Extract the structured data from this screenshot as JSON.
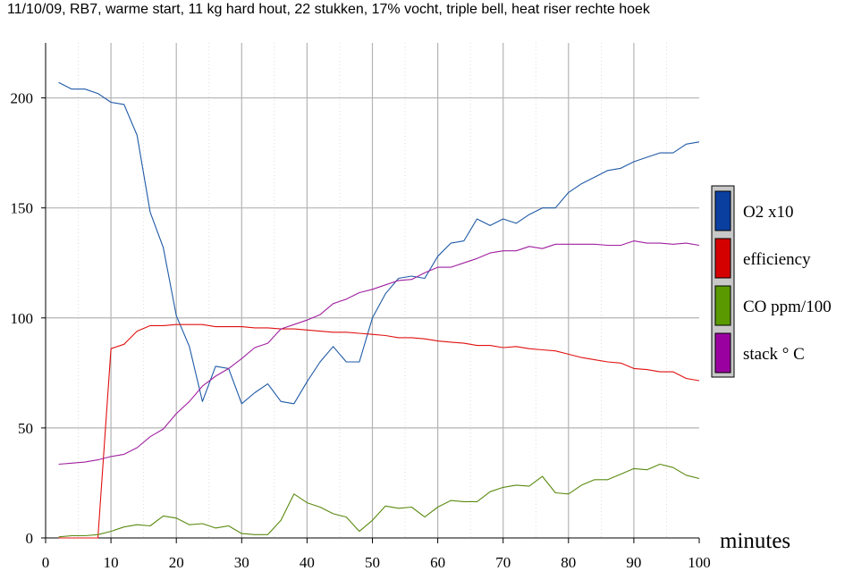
{
  "title": "11/10/09, RB7, warme start, 11 kg hard hout, 22 stukken, 17% vocht, triple bell, heat riser rechte hoek",
  "chart_data": {
    "type": "line",
    "title": "11/10/09, RB7, warme start, 11 kg hard hout, 22 stukken, 17% vocht, triple bell, heat riser rechte hoek",
    "xlabel": "minutes",
    "ylabel": "",
    "xlim": [
      0,
      100
    ],
    "ylim": [
      0,
      225
    ],
    "xticks": [
      0,
      10,
      20,
      30,
      40,
      50,
      60,
      70,
      80,
      90,
      100
    ],
    "yticks": [
      0,
      50,
      100,
      150,
      200
    ],
    "grid": true,
    "legend_position": "right",
    "x": [
      2,
      4,
      6,
      8,
      10,
      12,
      14,
      16,
      18,
      20,
      22,
      24,
      26,
      28,
      30,
      32,
      34,
      36,
      38,
      40,
      42,
      44,
      46,
      48,
      50,
      52,
      54,
      56,
      58,
      60,
      62,
      64,
      66,
      68,
      70,
      72,
      74,
      76,
      78,
      80,
      82,
      84,
      86,
      88,
      90,
      92,
      94,
      96,
      98,
      100
    ],
    "series": [
      {
        "name": "O2 x10",
        "color": "#1f5aa6",
        "legend_color": "#0a3fa0",
        "values": [
          207,
          204,
          204,
          202,
          198,
          197,
          183,
          148,
          132,
          101,
          87,
          62,
          78,
          77,
          61,
          66,
          70,
          62,
          61,
          71,
          80,
          87,
          80,
          80,
          100,
          111,
          118,
          119,
          118,
          128,
          134,
          135,
          145,
          142,
          145,
          143,
          147,
          150,
          150,
          157,
          161,
          164,
          167,
          168,
          171,
          173,
          175,
          175,
          179,
          180
        ]
      },
      {
        "name": "efficiency",
        "color": "#e01010",
        "legend_color": "#d40000",
        "values": [
          0,
          0,
          0,
          0,
          86,
          88,
          94,
          96.5,
          96.5,
          97,
          97,
          97,
          96,
          96,
          96,
          95.5,
          95.5,
          95,
          95,
          94.5,
          94,
          93.5,
          93.5,
          93,
          92.5,
          92,
          91,
          91,
          90.5,
          89.5,
          89,
          88.5,
          87.5,
          87.5,
          86.5,
          87,
          86,
          85.5,
          85,
          83.5,
          82,
          81,
          80,
          79.5,
          77,
          76.5,
          75.5,
          75.5,
          72.5,
          71.5
        ]
      },
      {
        "name": "CO ppm/100",
        "color": "#5a8a10",
        "legend_color": "#5a9a00",
        "values": [
          0.5,
          1,
          1,
          1.5,
          3,
          5,
          6,
          5.5,
          10,
          9,
          6,
          6.5,
          4.5,
          5.5,
          2,
          1.5,
          1.5,
          8,
          20,
          16,
          14,
          11,
          9.5,
          3,
          8,
          14.5,
          13.5,
          14,
          9.5,
          14,
          17,
          16.5,
          16.5,
          21,
          23,
          24,
          23.5,
          28,
          20.5,
          20,
          24,
          26.5,
          26.5,
          29,
          31.5,
          31,
          33.5,
          32,
          28.5,
          27
        ]
      },
      {
        "name": "stack ° C",
        "color": "#a020a0",
        "legend_color": "#9a00a0",
        "values": [
          33.5,
          34,
          34.5,
          35.5,
          37,
          38,
          41,
          46,
          49.5,
          56.5,
          62,
          69,
          73.5,
          77,
          81.5,
          86.5,
          88.5,
          95,
          97,
          99,
          101.5,
          106.5,
          108.5,
          111.5,
          113,
          115,
          117,
          117.5,
          120.5,
          123,
          123,
          125,
          127,
          129.5,
          130.5,
          130.5,
          132.5,
          131.5,
          133.5,
          133.5,
          133.5,
          133.5,
          133,
          133,
          135,
          134,
          134,
          133.5,
          134,
          133
        ]
      }
    ]
  }
}
